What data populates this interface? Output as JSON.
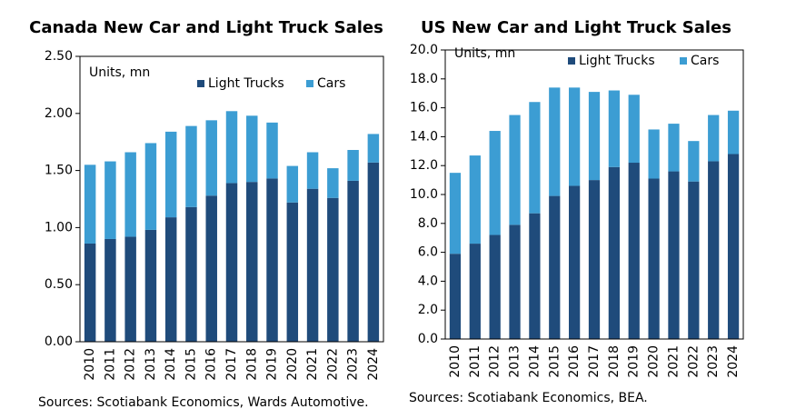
{
  "chart_data": [
    {
      "type": "bar",
      "stacked": true,
      "title": "Canada New Car and Light Truck Sales",
      "y_label": "Units, mn",
      "categories": [
        "2010",
        "2011",
        "2012",
        "2013",
        "2014",
        "2015",
        "2016",
        "2017",
        "2018",
        "2019",
        "2020",
        "2021",
        "2022",
        "2023",
        "2024"
      ],
      "series": [
        {
          "name": "Light Trucks",
          "color": "#1f4b7b",
          "values": [
            0.86,
            0.9,
            0.92,
            0.98,
            1.09,
            1.18,
            1.28,
            1.39,
            1.4,
            1.43,
            1.22,
            1.34,
            1.26,
            1.41,
            1.57
          ]
        },
        {
          "name": "Cars",
          "color": "#3c9dd3",
          "values": [
            0.69,
            0.68,
            0.74,
            0.76,
            0.75,
            0.71,
            0.66,
            0.63,
            0.58,
            0.49,
            0.32,
            0.32,
            0.26,
            0.27,
            0.25
          ]
        }
      ],
      "ylim": [
        0,
        2.5
      ],
      "yticks": [
        {
          "value": 0,
          "label": "0.00"
        },
        {
          "value": 0.5,
          "label": "0.50"
        },
        {
          "value": 1,
          "label": "1.00"
        },
        {
          "value": 1.5,
          "label": "1.50"
        },
        {
          "value": 2,
          "label": "2.00"
        },
        {
          "value": 2.5,
          "label": "2.50"
        }
      ],
      "legend": "top-right",
      "source": "Sources: Scotiabank Economics, Wards Automotive."
    },
    {
      "type": "bar",
      "stacked": true,
      "title": "US New Car and Light Truck Sales",
      "y_label": "Units, mn",
      "categories": [
        "2010",
        "2011",
        "2012",
        "2013",
        "2014",
        "2015",
        "2016",
        "2017",
        "2018",
        "2019",
        "2020",
        "2021",
        "2022",
        "2023",
        "2024"
      ],
      "series": [
        {
          "name": "Light Trucks",
          "color": "#1f4b7b",
          "values": [
            5.9,
            6.6,
            7.2,
            7.9,
            8.7,
            9.9,
            10.6,
            11.0,
            11.9,
            12.2,
            11.1,
            11.6,
            10.9,
            12.3,
            12.8
          ]
        },
        {
          "name": "Cars",
          "color": "#3c9dd3",
          "values": [
            5.6,
            6.1,
            7.2,
            7.6,
            7.7,
            7.5,
            6.8,
            6.1,
            5.3,
            4.7,
            3.4,
            3.3,
            2.8,
            3.2,
            3.0
          ]
        }
      ],
      "ylim": [
        0,
        20
      ],
      "yticks": [
        {
          "value": 0,
          "label": "0.0"
        },
        {
          "value": 2,
          "label": "2.0"
        },
        {
          "value": 4,
          "label": "4.0"
        },
        {
          "value": 6,
          "label": "6.0"
        },
        {
          "value": 8,
          "label": "8.0"
        },
        {
          "value": 10,
          "label": "10.0"
        },
        {
          "value": 12,
          "label": "12.0"
        },
        {
          "value": 14,
          "label": "14.0"
        },
        {
          "value": 16,
          "label": "16.0"
        },
        {
          "value": 18,
          "label": "18.0"
        },
        {
          "value": 20,
          "label": "20.0"
        }
      ],
      "legend": "top-right",
      "source": "Sources: Scotiabank Economics, BEA."
    }
  ]
}
